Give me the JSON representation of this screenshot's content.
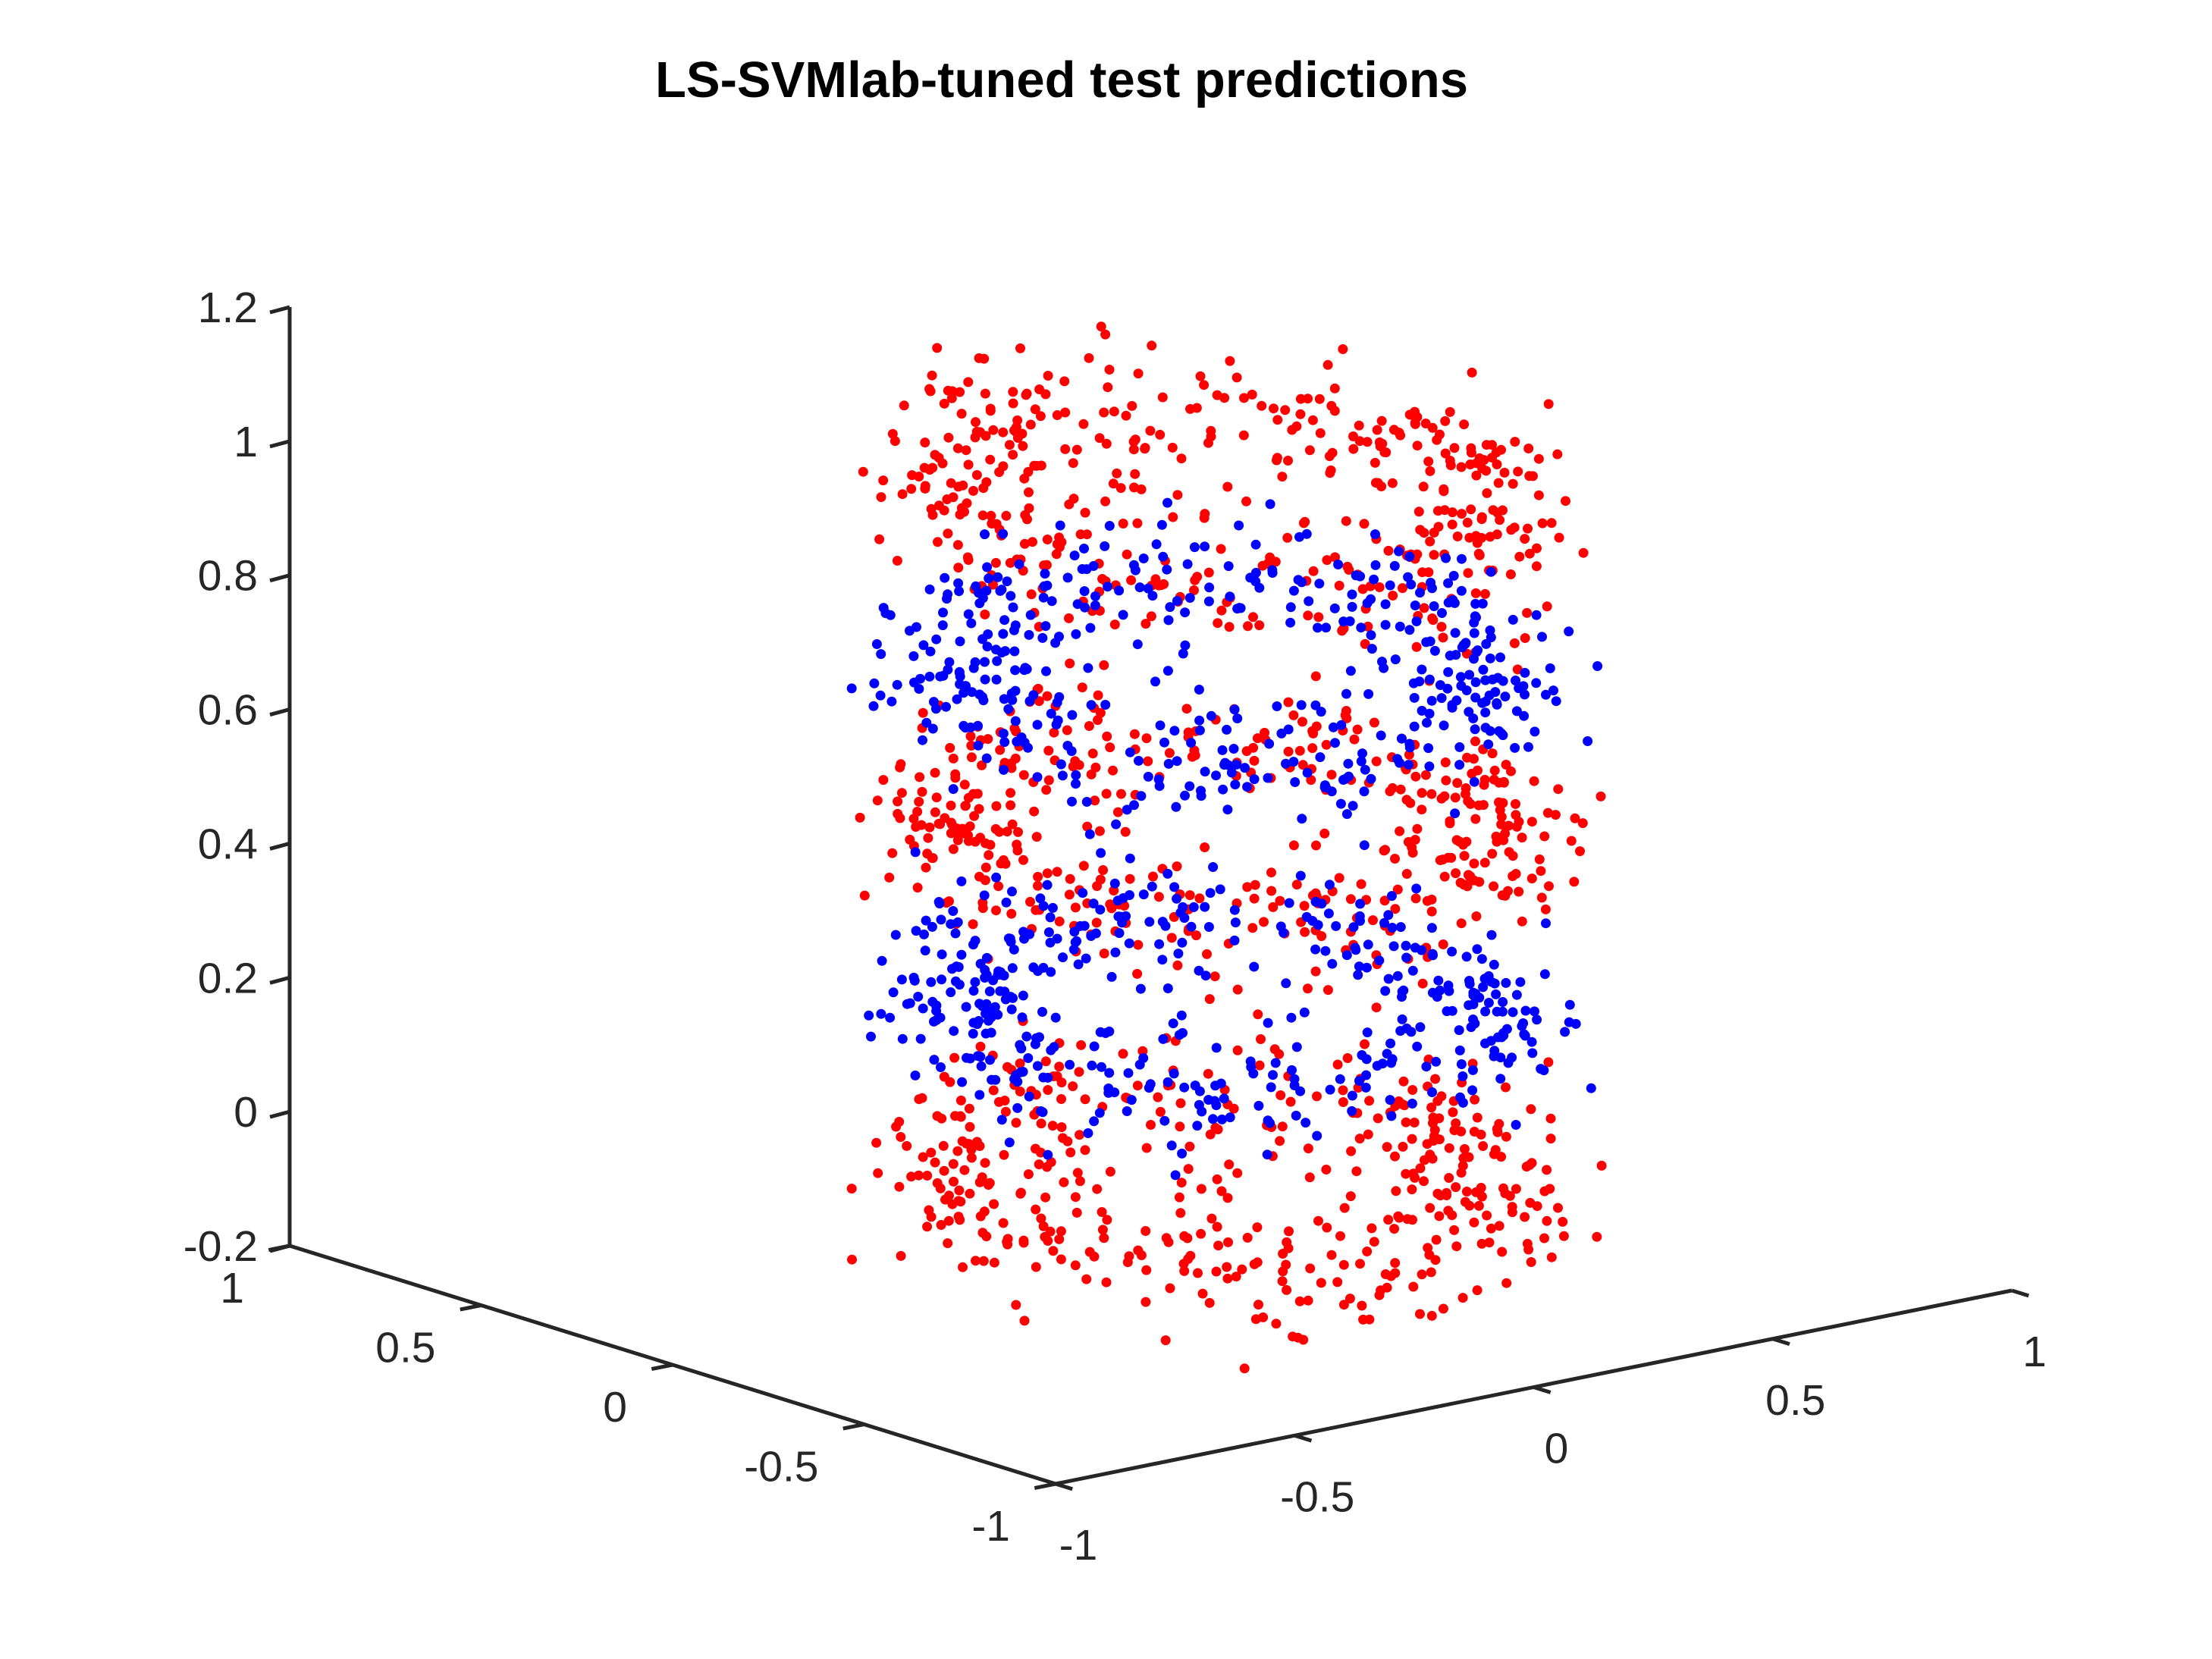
{
  "chart_data": {
    "type": "scatter",
    "title": "LS-SVMlab-tuned test predictions",
    "xlabel": "",
    "ylabel": "",
    "zlabel": "",
    "projection": "3d",
    "grid": false,
    "legend": "none",
    "xlim": [
      -1,
      1
    ],
    "ylim": [
      -1,
      1
    ],
    "zlim": [
      -0.2,
      1.2
    ],
    "x_ticks": [
      "-1",
      "-0.5",
      "0",
      "0.5",
      "1"
    ],
    "y_ticks": [
      "-1",
      "-0.5",
      "0",
      "0.5",
      "1"
    ],
    "z_ticks": [
      "-0.2",
      "0",
      "0.2",
      "0.4",
      "0.6",
      "0.8",
      "1",
      "1.2"
    ],
    "series": [
      {
        "color": "#ff0000",
        "description_bands": [
          {
            "z_center": -0.1,
            "z_spread": 0.06
          },
          {
            "z_center": 0.42,
            "z_spread": 0.05
          },
          {
            "z_center": 0.9,
            "z_spread": 0.06
          }
        ]
      },
      {
        "color": "#0000ff",
        "description_bands": [
          {
            "z_center": 0.16,
            "z_spread": 0.05
          },
          {
            "z_center": 0.66,
            "z_spread": 0.05
          }
        ]
      }
    ],
    "point_count_approx": 2200
  }
}
